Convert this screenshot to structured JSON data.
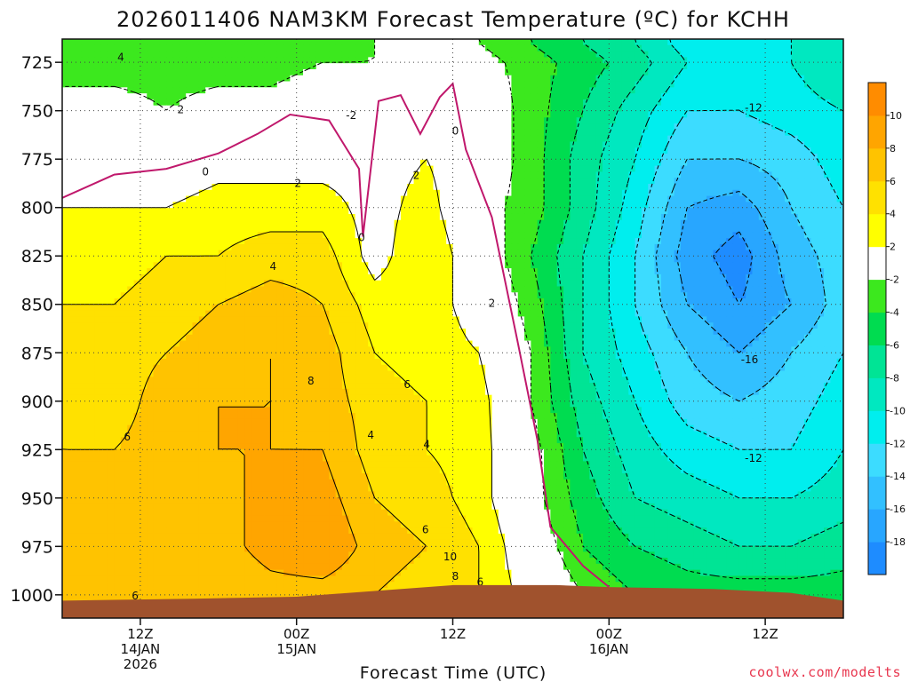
{
  "title": "2026011406 NAM3KM Forecast Temperature (ºC) for KCHH",
  "credit": "coolwx.com/modelts",
  "colors": {
    "ground": "#a0522d",
    "freezing_contour": "#c0186c",
    "contour": "#000000",
    "grid": "#444444"
  },
  "chart_data": {
    "type": "heatmap",
    "title": "2026011406 NAM3KM Forecast Temperature (ºC) for KCHH",
    "xlabel": "Forecast Time (UTC)",
    "ylabel": "",
    "x_units": "hours from 2026-01-14 06Z",
    "xlim": [
      0,
      60
    ],
    "x_ticks": [
      {
        "h": 6,
        "label": "12Z",
        "sub": [
          "14JAN",
          "2026"
        ]
      },
      {
        "h": 18,
        "label": "00Z",
        "sub": [
          "15JAN"
        ]
      },
      {
        "h": 30,
        "label": "12Z",
        "sub": []
      },
      {
        "h": 42,
        "label": "00Z",
        "sub": [
          "16JAN"
        ]
      },
      {
        "h": 54,
        "label": "12Z",
        "sub": []
      }
    ],
    "y_units": "hPa",
    "ylim": [
      713,
      1012
    ],
    "y_ticks": [
      725,
      750,
      775,
      800,
      825,
      850,
      875,
      900,
      925,
      950,
      975,
      1000
    ],
    "grid": true,
    "grid_style": "dotted",
    "colorbar": {
      "placement": "right",
      "levels": [
        -20,
        -18,
        -16,
        -14,
        -12,
        -10,
        -8,
        -6,
        -4,
        -2,
        2,
        4,
        6,
        8,
        10,
        12
      ],
      "tick_labels": [
        "-18",
        "-16",
        "-14",
        "-12",
        "-10",
        "-8",
        "-6",
        "-4",
        "-2",
        "2",
        "4",
        "6",
        "8",
        "10"
      ],
      "colors": [
        "#1e8cff",
        "#28a6ff",
        "#32c0ff",
        "#3cdcff",
        "#00eeee",
        "#00e8c0",
        "#00e495",
        "#00dc50",
        "#3ce81e",
        "#ffffff",
        "#ffff00",
        "#ffe100",
        "#ffc300",
        "#ffa500",
        "#ff8c00"
      ]
    },
    "surface_hPa": [
      {
        "h": 0,
        "p": 1003
      },
      {
        "h": 10,
        "p": 1002
      },
      {
        "h": 18,
        "p": 1001
      },
      {
        "h": 24,
        "p": 998
      },
      {
        "h": 30,
        "p": 995
      },
      {
        "h": 38,
        "p": 995
      },
      {
        "h": 42,
        "p": 996
      },
      {
        "h": 50,
        "p": 997
      },
      {
        "h": 56,
        "p": 999
      },
      {
        "h": 60,
        "p": 1003
      }
    ],
    "freezing_line": [
      {
        "h": 0,
        "p": 795
      },
      {
        "h": 4,
        "p": 783
      },
      {
        "h": 8,
        "p": 780
      },
      {
        "h": 12,
        "p": 772
      },
      {
        "h": 15,
        "p": 762
      },
      {
        "h": 17.5,
        "p": 752
      },
      {
        "h": 20.5,
        "p": 755
      },
      {
        "h": 22.8,
        "p": 780
      },
      {
        "h": 23.1,
        "p": 815
      },
      {
        "h": 24.3,
        "p": 745
      },
      {
        "h": 26,
        "p": 742
      },
      {
        "h": 27.5,
        "p": 762
      },
      {
        "h": 29,
        "p": 743
      },
      {
        "h": 30,
        "p": 736
      },
      {
        "h": 31,
        "p": 770
      },
      {
        "h": 33,
        "p": 805
      },
      {
        "h": 35,
        "p": 870
      },
      {
        "h": 36.5,
        "p": 920
      },
      {
        "h": 37.5,
        "p": 965
      },
      {
        "h": 40,
        "p": 985
      },
      {
        "h": 42,
        "p": 996
      }
    ],
    "field": {
      "h": [
        0,
        4,
        8,
        12,
        16,
        20,
        24,
        28,
        32,
        36,
        40,
        44,
        48,
        52,
        56,
        60
      ],
      "p": [
        715,
        725,
        750,
        775,
        800,
        825,
        850,
        875,
        900,
        925,
        950,
        975,
        1000
      ],
      "temp": [
        [
          -3,
          -4,
          -4,
          -4,
          -4,
          -3,
          -2,
          -2,
          -2,
          -4,
          -6,
          -8,
          -11,
          -12,
          -10,
          -8
        ],
        [
          -3,
          -3,
          -3,
          -3,
          -3,
          -2,
          -2,
          -1,
          -1,
          -3,
          -5,
          -7,
          -10,
          -11,
          -10,
          -8
        ],
        [
          -1,
          -1,
          -2,
          -1,
          -1,
          0,
          -1,
          1,
          0,
          -3,
          -6,
          -9,
          -12,
          -12,
          -11,
          -10
        ],
        [
          1,
          1,
          0,
          1,
          1,
          1,
          1,
          2,
          0,
          -3,
          -7,
          -10,
          -14,
          -14,
          -13,
          -11
        ],
        [
          2,
          2,
          2,
          3,
          3,
          3,
          1,
          3,
          -1,
          -3,
          -7,
          -11,
          -16,
          -17,
          -14,
          -12
        ],
        [
          3,
          3,
          4,
          4,
          5,
          5,
          1,
          4,
          0,
          -4,
          -8,
          -12,
          -17,
          -19,
          -15,
          -13
        ],
        [
          4,
          4,
          5,
          6,
          7,
          6,
          3,
          3,
          1,
          -3,
          -8,
          -12,
          -16,
          -18,
          -16,
          -13
        ],
        [
          5,
          5,
          6,
          7,
          8,
          7,
          4,
          3,
          2,
          -2,
          -8,
          -11,
          -14,
          -16,
          -14,
          -12
        ],
        [
          6,
          5,
          7,
          8,
          8,
          7,
          5,
          4,
          3,
          -2,
          -7,
          -10,
          -13,
          -14,
          -13,
          -11
        ],
        [
          6,
          6,
          7,
          8,
          8,
          8,
          5,
          4,
          3,
          -1,
          -6,
          -9,
          -11,
          -12,
          -12,
          -10
        ],
        [
          6,
          7,
          7,
          7,
          9,
          9,
          6,
          5,
          3,
          -1,
          -5,
          -8,
          -9,
          -10,
          -10,
          -9
        ],
        [
          7,
          8,
          7,
          7,
          9,
          10,
          7,
          6,
          4,
          0,
          -4,
          -6,
          -7,
          -8,
          -8,
          -7
        ],
        [
          6,
          6,
          6,
          6,
          7,
          7,
          6,
          5,
          4,
          1,
          -2,
          -4,
          -5,
          -5,
          -5,
          -5
        ]
      ]
    },
    "contour_labels": [
      {
        "h": 4.5,
        "p": 722,
        "text": "4"
      },
      {
        "h": 9.1,
        "p": 749,
        "text": "2"
      },
      {
        "h": 22.2,
        "p": 752,
        "text": "-2"
      },
      {
        "h": 30.2,
        "p": 760,
        "text": "0"
      },
      {
        "h": 11.0,
        "p": 781,
        "text": "0"
      },
      {
        "h": 18.1,
        "p": 787,
        "text": "2"
      },
      {
        "h": 27.2,
        "p": 783,
        "text": "2"
      },
      {
        "h": 23.0,
        "p": 815,
        "text": "0"
      },
      {
        "h": 16.2,
        "p": 830,
        "text": "4"
      },
      {
        "h": 33.0,
        "p": 849,
        "text": "2"
      },
      {
        "h": 19.1,
        "p": 889,
        "text": "8"
      },
      {
        "h": 26.5,
        "p": 891,
        "text": "6"
      },
      {
        "h": 5.0,
        "p": 918,
        "text": "6"
      },
      {
        "h": 23.7,
        "p": 917,
        "text": "4"
      },
      {
        "h": 28.0,
        "p": 922,
        "text": "4"
      },
      {
        "h": 53.1,
        "p": 748,
        "text": "-12"
      },
      {
        "h": 52.8,
        "p": 878,
        "text": "-16"
      },
      {
        "h": 53.1,
        "p": 929,
        "text": "-12"
      },
      {
        "h": 27.9,
        "p": 966,
        "text": "6"
      },
      {
        "h": 29.8,
        "p": 980,
        "text": "10"
      },
      {
        "h": 30.2,
        "p": 990,
        "text": "8"
      },
      {
        "h": 32.1,
        "p": 993,
        "text": "6"
      },
      {
        "h": 5.6,
        "p": 1000,
        "text": "6"
      }
    ]
  }
}
